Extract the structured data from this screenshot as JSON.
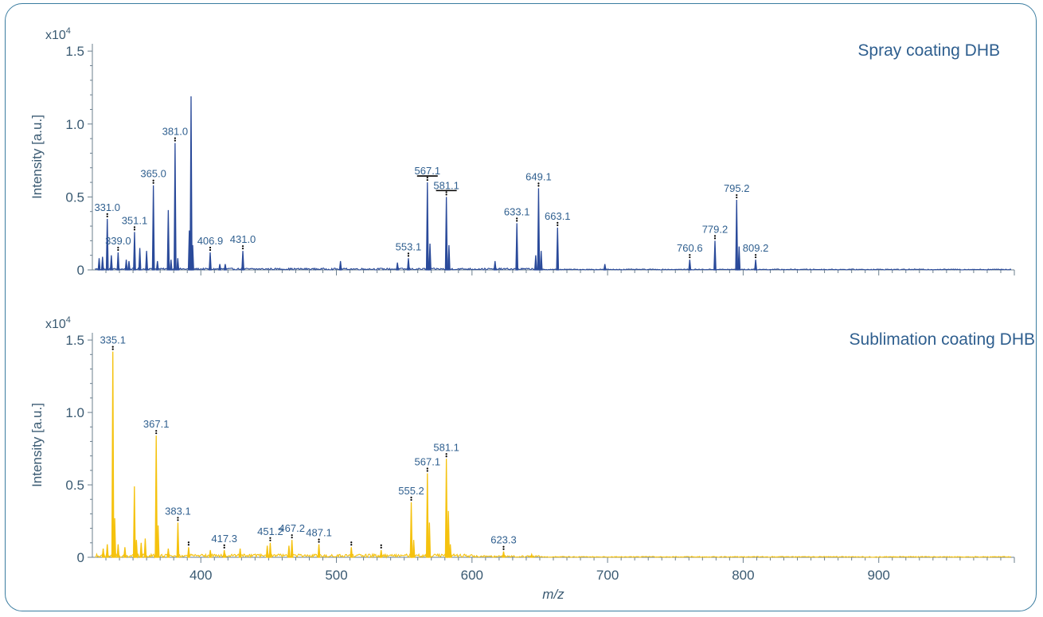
{
  "chart_data": [
    {
      "type": "line",
      "title": "Spray coating DHB",
      "ylabel": "Intensity [a.u.]",
      "y_multiplier": "x10",
      "y_multiplier_exp": "4",
      "xlim": [
        320,
        1000
      ],
      "ylim": [
        0,
        1.55
      ],
      "yticks": [
        0,
        0.5,
        1.0,
        1.5
      ],
      "ytick_labels": [
        "0",
        "0.5",
        "1.0",
        "1.5"
      ],
      "color": "#2a4a9a",
      "grid": false,
      "peaks": [
        {
          "x": 325.0,
          "y": 0.08,
          "label": ""
        },
        {
          "x": 327.5,
          "y": 0.09,
          "label": ""
        },
        {
          "x": 331.0,
          "y": 0.35,
          "label": "331.0"
        },
        {
          "x": 334.0,
          "y": 0.1,
          "label": ""
        },
        {
          "x": 339.0,
          "y": 0.12,
          "label": "339.0"
        },
        {
          "x": 345.0,
          "y": 0.07,
          "label": ""
        },
        {
          "x": 347.0,
          "y": 0.06,
          "label": ""
        },
        {
          "x": 351.1,
          "y": 0.26,
          "label": "351.1"
        },
        {
          "x": 355.0,
          "y": 0.15,
          "label": ""
        },
        {
          "x": 360.0,
          "y": 0.13,
          "label": ""
        },
        {
          "x": 365.0,
          "y": 0.58,
          "label": "365.0"
        },
        {
          "x": 368.0,
          "y": 0.06,
          "label": ""
        },
        {
          "x": 376.0,
          "y": 0.41,
          "label": ""
        },
        {
          "x": 378.0,
          "y": 0.07,
          "label": ""
        },
        {
          "x": 381.0,
          "y": 0.87,
          "label": "381.0"
        },
        {
          "x": 383.0,
          "y": 0.08,
          "label": ""
        },
        {
          "x": 391.5,
          "y": 0.27,
          "label": ""
        },
        {
          "x": 392.8,
          "y": 1.19,
          "label": ""
        },
        {
          "x": 394.0,
          "y": 0.17,
          "label": ""
        },
        {
          "x": 406.9,
          "y": 0.12,
          "label": "406.9"
        },
        {
          "x": 414.0,
          "y": 0.04,
          "label": ""
        },
        {
          "x": 418.0,
          "y": 0.04,
          "label": ""
        },
        {
          "x": 431.0,
          "y": 0.13,
          "label": "431.0"
        },
        {
          "x": 503.0,
          "y": 0.06,
          "label": ""
        },
        {
          "x": 545.0,
          "y": 0.05,
          "label": ""
        },
        {
          "x": 553.1,
          "y": 0.08,
          "label": "553.1"
        },
        {
          "x": 567.1,
          "y": 0.6,
          "label": "567.1"
        },
        {
          "x": 569.0,
          "y": 0.18,
          "label": ""
        },
        {
          "x": 581.1,
          "y": 0.5,
          "label": "581.1"
        },
        {
          "x": 583.0,
          "y": 0.17,
          "label": ""
        },
        {
          "x": 617.0,
          "y": 0.06,
          "label": ""
        },
        {
          "x": 633.1,
          "y": 0.32,
          "label": "633.1"
        },
        {
          "x": 647.0,
          "y": 0.1,
          "label": ""
        },
        {
          "x": 649.1,
          "y": 0.56,
          "label": "649.1"
        },
        {
          "x": 651.0,
          "y": 0.13,
          "label": ""
        },
        {
          "x": 663.1,
          "y": 0.29,
          "label": "663.1"
        },
        {
          "x": 698.0,
          "y": 0.04,
          "label": ""
        },
        {
          "x": 760.6,
          "y": 0.07,
          "label": "760.6"
        },
        {
          "x": 779.2,
          "y": 0.2,
          "label": "779.2"
        },
        {
          "x": 795.2,
          "y": 0.48,
          "label": "795.2"
        },
        {
          "x": 797.0,
          "y": 0.16,
          "label": ""
        },
        {
          "x": 809.2,
          "y": 0.07,
          "label": "809.2"
        }
      ],
      "bracket_peaks": [
        "567.1",
        "581.1"
      ]
    },
    {
      "type": "line",
      "title": "Sublimation coating DHB",
      "xlabel": "m/z",
      "ylabel": "Intensity [a.u.]",
      "y_multiplier": "x10",
      "y_multiplier_exp": "4",
      "xlim": [
        320,
        1000
      ],
      "ylim": [
        0,
        1.55
      ],
      "xticks": [
        400,
        500,
        600,
        700,
        800,
        900
      ],
      "xtick_labels": [
        "400",
        "500",
        "600",
        "700",
        "800",
        "900"
      ],
      "yticks": [
        0,
        0.5,
        1.0,
        1.5
      ],
      "ytick_labels": [
        "0",
        "0.5",
        "1.0",
        "1.5"
      ],
      "color": "#f5c20e",
      "grid": false,
      "peaks": [
        {
          "x": 328.0,
          "y": 0.06,
          "label": ""
        },
        {
          "x": 331.0,
          "y": 0.09,
          "label": ""
        },
        {
          "x": 335.1,
          "y": 1.42,
          "label": "335.1"
        },
        {
          "x": 336.5,
          "y": 0.27,
          "label": ""
        },
        {
          "x": 339.0,
          "y": 0.09,
          "label": ""
        },
        {
          "x": 344.0,
          "y": 0.07,
          "label": ""
        },
        {
          "x": 351.0,
          "y": 0.49,
          "label": ""
        },
        {
          "x": 352.5,
          "y": 0.12,
          "label": ""
        },
        {
          "x": 356.0,
          "y": 0.1,
          "label": ""
        },
        {
          "x": 359.0,
          "y": 0.13,
          "label": ""
        },
        {
          "x": 367.1,
          "y": 0.84,
          "label": "367.1"
        },
        {
          "x": 368.5,
          "y": 0.22,
          "label": ""
        },
        {
          "x": 376.0,
          "y": 0.06,
          "label": ""
        },
        {
          "x": 383.1,
          "y": 0.24,
          "label": "383.1"
        },
        {
          "x": 391.0,
          "y": 0.07,
          "label": ""
        },
        {
          "x": 407.0,
          "y": 0.05,
          "label": ""
        },
        {
          "x": 417.3,
          "y": 0.05,
          "label": "417.3"
        },
        {
          "x": 429.0,
          "y": 0.06,
          "label": ""
        },
        {
          "x": 449.0,
          "y": 0.08,
          "label": ""
        },
        {
          "x": 451.2,
          "y": 0.1,
          "label": "451.2"
        },
        {
          "x": 465.0,
          "y": 0.08,
          "label": ""
        },
        {
          "x": 467.2,
          "y": 0.12,
          "label": "467.2"
        },
        {
          "x": 487.1,
          "y": 0.09,
          "label": "487.1"
        },
        {
          "x": 511.0,
          "y": 0.07,
          "label": ""
        },
        {
          "x": 533.0,
          "y": 0.05,
          "label": ""
        },
        {
          "x": 555.2,
          "y": 0.38,
          "label": "555.2"
        },
        {
          "x": 557.0,
          "y": 0.12,
          "label": ""
        },
        {
          "x": 567.1,
          "y": 0.58,
          "label": "567.1"
        },
        {
          "x": 568.6,
          "y": 0.24,
          "label": ""
        },
        {
          "x": 581.1,
          "y": 0.68,
          "label": "581.1"
        },
        {
          "x": 582.6,
          "y": 0.32,
          "label": ""
        },
        {
          "x": 584.0,
          "y": 0.09,
          "label": ""
        },
        {
          "x": 623.3,
          "y": 0.04,
          "label": "623.3"
        },
        {
          "x": 644.0,
          "y": 0.02,
          "label": ""
        }
      ],
      "unlabeled_markers": [
        391.0,
        511.0,
        533.0
      ]
    }
  ]
}
